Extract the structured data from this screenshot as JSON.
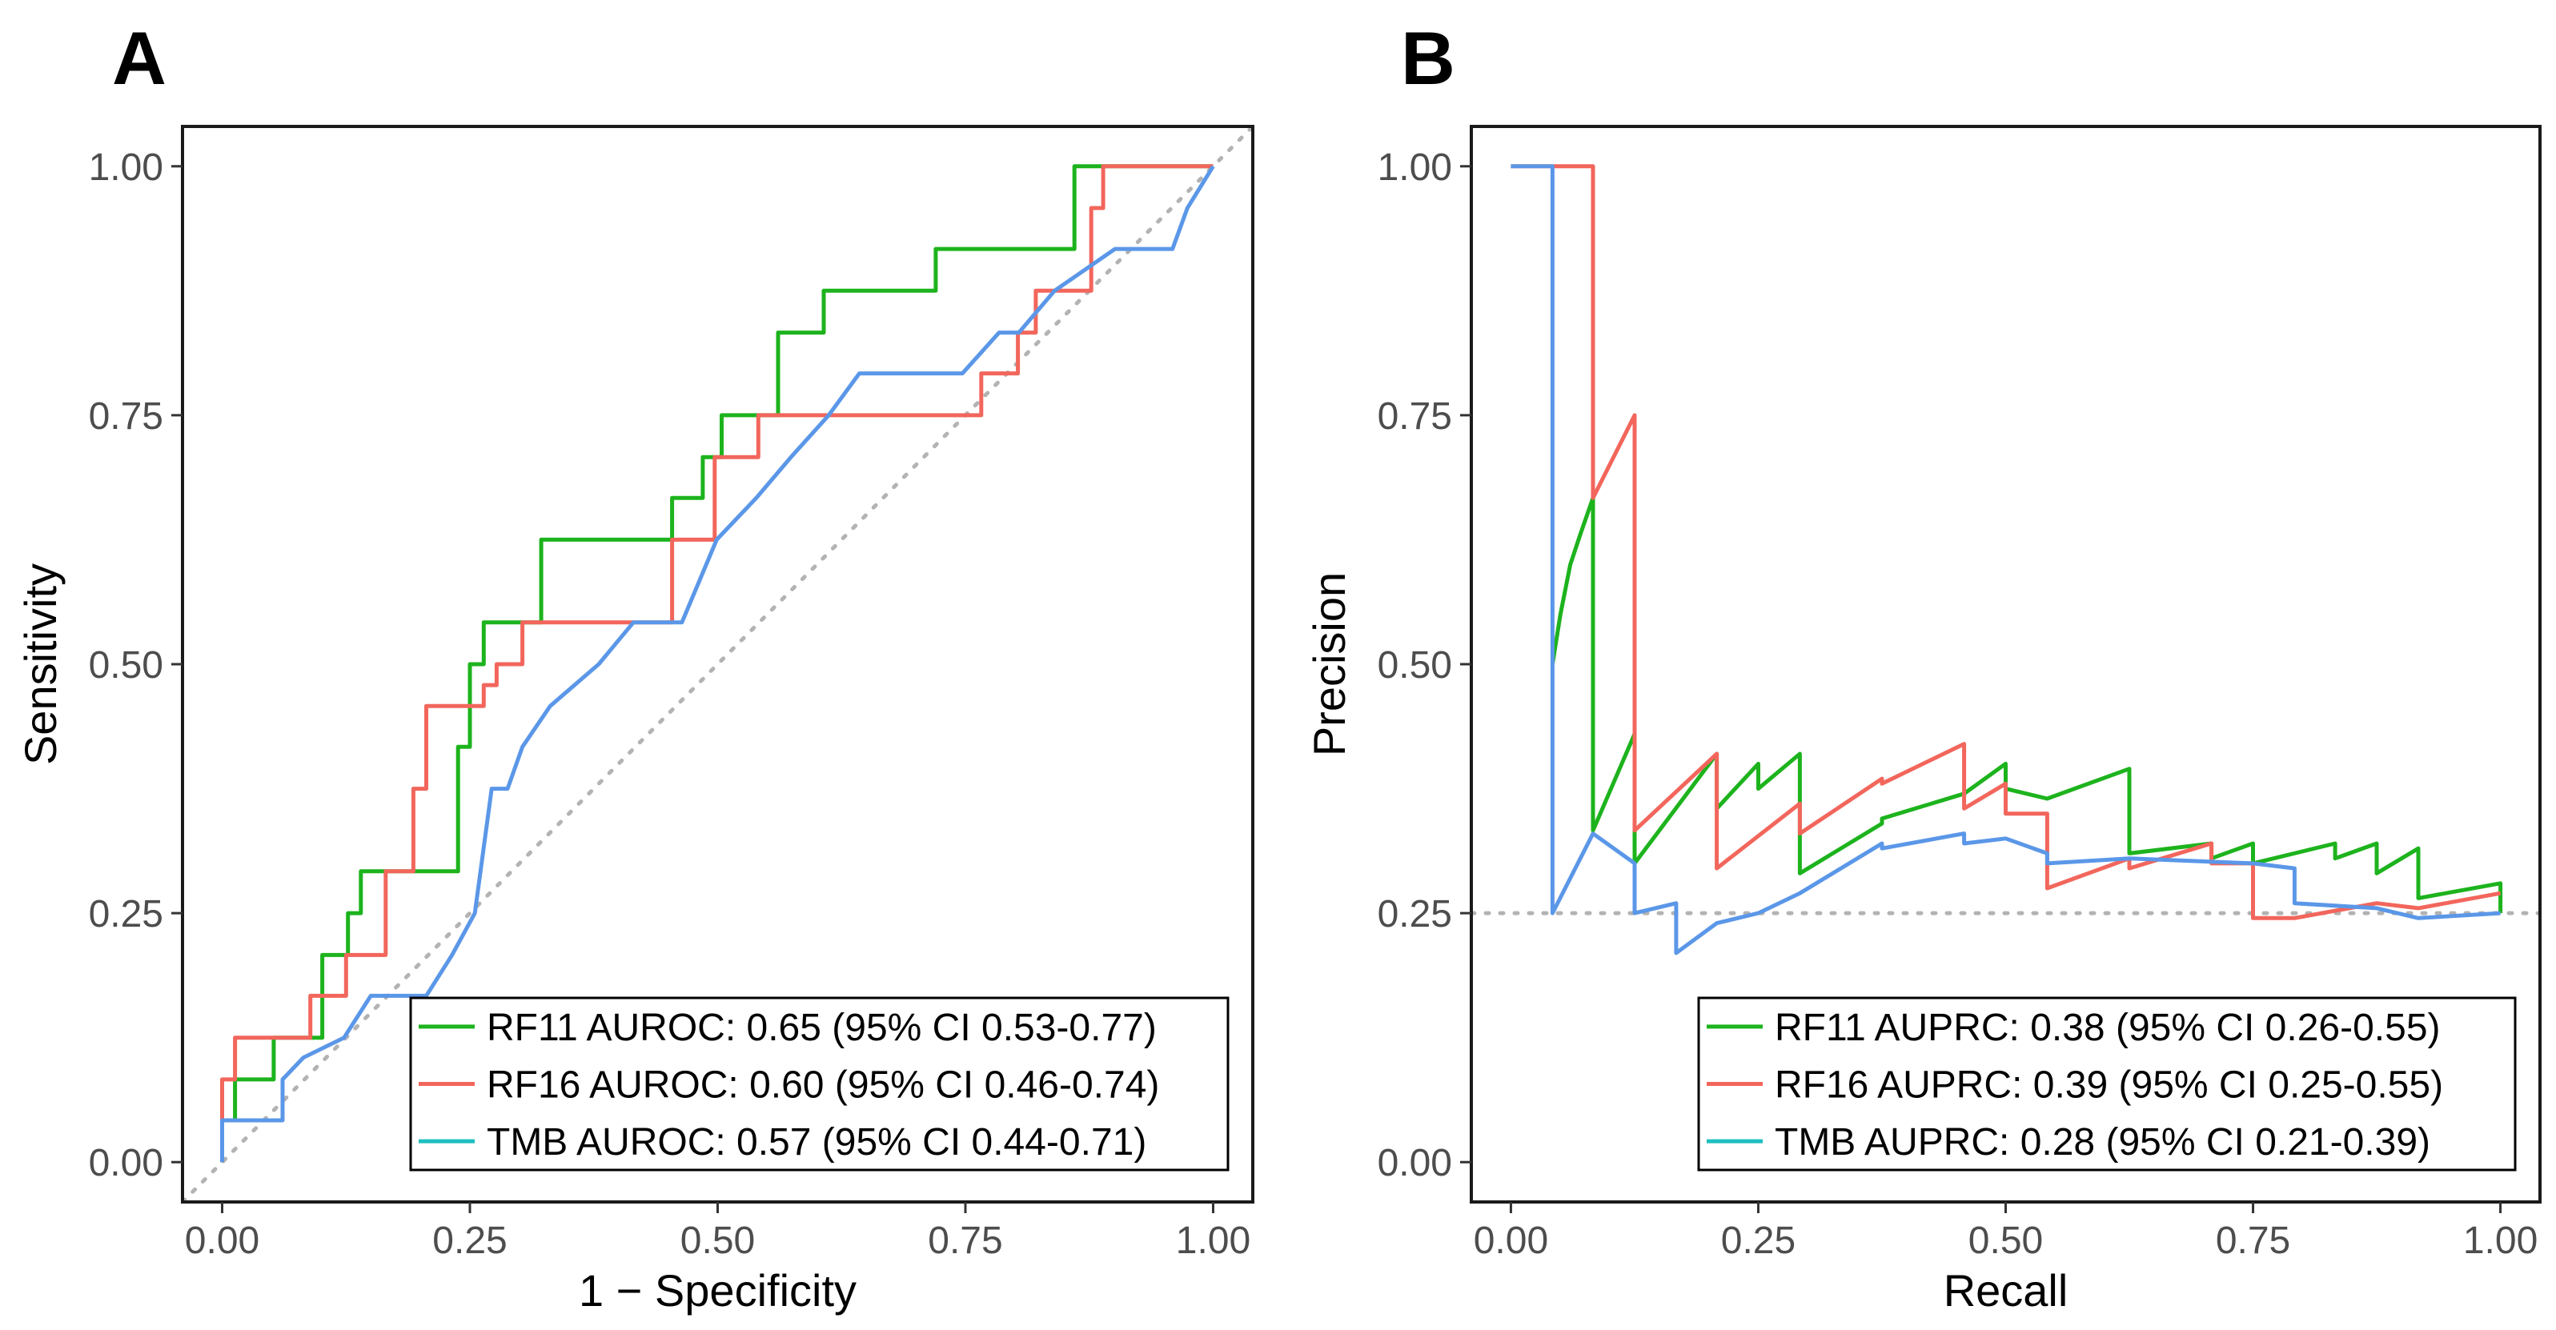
{
  "chart_data": [
    {
      "type": "line",
      "panel_label": "A",
      "title": "",
      "xlabel": "1 − Specificity",
      "ylabel": "Sensitivity",
      "xlim": [
        -0.04,
        1.04
      ],
      "ylim": [
        -0.04,
        1.04
      ],
      "xticks": [
        0,
        0.25,
        0.5,
        0.75,
        1
      ],
      "xtick_labels": [
        "0.00",
        "0.25",
        "0.50",
        "0.75",
        "1.00"
      ],
      "yticks": [
        0,
        0.25,
        0.5,
        0.75,
        1
      ],
      "ytick_labels": [
        "0.00",
        "0.25",
        "0.50",
        "0.75",
        "1.00"
      ],
      "reference_line": {
        "type": "diagonal",
        "from": [
          -0.04,
          -0.04
        ],
        "to": [
          1.04,
          1.04
        ]
      },
      "legend_position": "bottom-right",
      "series": [
        {
          "name": "RF11",
          "legend_label": "RF11  AUROC: 0.65 (95% CI 0.53-0.77)",
          "color": "#1db31d",
          "x": [
            0,
            0,
            0.013,
            0.013,
            0.052,
            0.052,
            0.101,
            0.101,
            0.127,
            0.127,
            0.14,
            0.14,
            0.152,
            0.152,
            0.238,
            0.238,
            0.25,
            0.25,
            0.264,
            0.264,
            0.322,
            0.322,
            0.454,
            0.454,
            0.485,
            0.485,
            0.504,
            0.504,
            0.561,
            0.561,
            0.607,
            0.607,
            0.72,
            0.72,
            0.86,
            0.86,
            1
          ],
          "y": [
            0,
            0.042,
            0.042,
            0.083,
            0.083,
            0.125,
            0.125,
            0.208,
            0.208,
            0.25,
            0.25,
            0.292,
            0.292,
            0.292,
            0.292,
            0.417,
            0.417,
            0.5,
            0.5,
            0.542,
            0.542,
            0.625,
            0.625,
            0.667,
            0.667,
            0.708,
            0.708,
            0.75,
            0.75,
            0.833,
            0.833,
            0.875,
            0.875,
            0.917,
            0.917,
            1,
            1
          ]
        },
        {
          "name": "RF16",
          "legend_label": "RF16  AUROC: 0.60 (95% CI 0.46-0.74)",
          "color": "#f2665c",
          "x": [
            0,
            0,
            0.013,
            0.013,
            0.076,
            0.076,
            0.089,
            0.089,
            0.125,
            0.125,
            0.165,
            0.165,
            0.193,
            0.193,
            0.206,
            0.206,
            0.264,
            0.264,
            0.277,
            0.277,
            0.303,
            0.303,
            0.454,
            0.454,
            0.497,
            0.497,
            0.541,
            0.541,
            0.766,
            0.766,
            0.803,
            0.803,
            0.821,
            0.821,
            0.84,
            0.84,
            0.877,
            0.877,
            0.889,
            0.889,
            1
          ],
          "y": [
            0,
            0.083,
            0.083,
            0.125,
            0.125,
            0.125,
            0.125,
            0.167,
            0.167,
            0.208,
            0.208,
            0.292,
            0.292,
            0.375,
            0.375,
            0.458,
            0.458,
            0.479,
            0.479,
            0.5,
            0.5,
            0.542,
            0.542,
            0.625,
            0.625,
            0.708,
            0.708,
            0.75,
            0.75,
            0.792,
            0.792,
            0.833,
            0.833,
            0.875,
            0.875,
            0.875,
            0.875,
            0.958,
            0.958,
            1,
            1
          ]
        },
        {
          "name": "TMB",
          "legend_label": "TMB  AUROC: 0.57 (95% CI 0.44-0.71)",
          "color": "#5b97e8",
          "x": [
            0,
            0,
            0.04,
            0.04,
            0.061,
            0.061,
            0.082,
            0.123,
            0.15,
            0.206,
            0.232,
            0.255,
            0.272,
            0.288,
            0.303,
            0.331,
            0.38,
            0.415,
            0.464,
            0.499,
            0.539,
            0.574,
            0.612,
            0.643,
            0.702,
            0.722,
            0.747,
            0.784,
            0.804,
            0.84,
            0.901,
            0.959,
            0.974,
            1
          ],
          "y": [
            0,
            0.042,
            0.042,
            0.042,
            0.042,
            0.083,
            0.105,
            0.125,
            0.167,
            0.167,
            0.208,
            0.25,
            0.375,
            0.375,
            0.417,
            0.458,
            0.5,
            0.542,
            0.542,
            0.625,
            0.667,
            0.708,
            0.75,
            0.792,
            0.792,
            0.792,
            0.792,
            0.833,
            0.833,
            0.875,
            0.917,
            0.917,
            0.958,
            1
          ]
        }
      ]
    },
    {
      "type": "line",
      "panel_label": "B",
      "title": "",
      "xlabel": "Recall",
      "ylabel": "Precision",
      "xlim": [
        -0.04,
        1.04
      ],
      "ylim": [
        -0.04,
        1.04
      ],
      "xticks": [
        0,
        0.25,
        0.5,
        0.75,
        1
      ],
      "xtick_labels": [
        "0.00",
        "0.25",
        "0.50",
        "0.75",
        "1.00"
      ],
      "yticks": [
        0,
        0.25,
        0.5,
        0.75,
        1
      ],
      "ytick_labels": [
        "0.00",
        "0.25",
        "0.50",
        "0.75",
        "1.00"
      ],
      "reference_line": {
        "type": "horizontal",
        "y": 0.25
      },
      "legend_position": "bottom-right",
      "series": [
        {
          "name": "RF11",
          "legend_label": "RF11  AUPRC: 0.38 (95% CI 0.26-0.55)",
          "color": "#1db31d",
          "x": [
            0.042,
            0.05,
            0.06,
            0.07,
            0.083,
            0.083,
            0.125,
            0.125,
            0.208,
            0.208,
            0.25,
            0.25,
            0.292,
            0.292,
            0.375,
            0.375,
            0.458,
            0.458,
            0.5,
            0.5,
            0.542,
            0.542,
            0.625,
            0.625,
            0.708,
            0.708,
            0.75,
            0.75,
            0.833,
            0.833,
            0.875,
            0.875,
            0.917,
            0.917,
            1,
            1
          ],
          "y": [
            0.5,
            0.55,
            0.6,
            0.63,
            0.667,
            0.333,
            0.43,
            0.3,
            0.41,
            0.355,
            0.4,
            0.375,
            0.41,
            0.29,
            0.34,
            0.345,
            0.37,
            0.37,
            0.4,
            0.375,
            0.365,
            0.365,
            0.395,
            0.31,
            0.32,
            0.305,
            0.32,
            0.3,
            0.32,
            0.305,
            0.32,
            0.29,
            0.315,
            0.265,
            0.28,
            0.25
          ]
        },
        {
          "name": "RF16",
          "legend_label": "RF16  AUPRC: 0.39 (95% CI 0.25-0.55)",
          "color": "#f2665c",
          "x": [
            0,
            0.042,
            0.042,
            0.083,
            0.083,
            0.125,
            0.125,
            0.208,
            0.208,
            0.292,
            0.292,
            0.375,
            0.375,
            0.458,
            0.458,
            0.5,
            0.5,
            0.542,
            0.542,
            0.625,
            0.625,
            0.708,
            0.708,
            0.75,
            0.75,
            0.792,
            0.875,
            0.917,
            1
          ],
          "y": [
            1,
            1,
            1,
            1,
            0.667,
            0.75,
            0.333,
            0.41,
            0.295,
            0.36,
            0.33,
            0.385,
            0.38,
            0.42,
            0.355,
            0.38,
            0.35,
            0.35,
            0.275,
            0.305,
            0.295,
            0.32,
            0.3,
            0.3,
            0.245,
            0.245,
            0.26,
            0.255,
            0.27
          ]
        },
        {
          "name": "TMB",
          "legend_label": "TMB  AUPRC: 0.28 (95% CI 0.21-0.39)",
          "color": "#5b97e8",
          "x": [
            0,
            0.042,
            0.042,
            0.083,
            0.125,
            0.125,
            0.167,
            0.167,
            0.208,
            0.25,
            0.292,
            0.375,
            0.375,
            0.458,
            0.458,
            0.5,
            0.542,
            0.542,
            0.625,
            0.75,
            0.792,
            0.792,
            0.875,
            0.917,
            1
          ],
          "y": [
            1,
            1,
            0.25,
            0.33,
            0.3,
            0.25,
            0.26,
            0.21,
            0.24,
            0.25,
            0.27,
            0.32,
            0.315,
            0.33,
            0.32,
            0.325,
            0.31,
            0.3,
            0.305,
            0.3,
            0.295,
            0.26,
            0.255,
            0.245,
            0.25
          ]
        }
      ]
    }
  ]
}
